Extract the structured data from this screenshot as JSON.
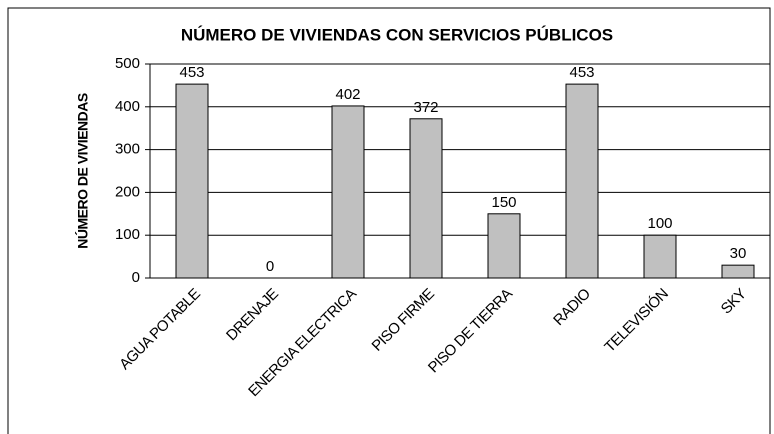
{
  "chart_data": {
    "type": "bar",
    "title": "NÚMERO DE VIVIENDAS CON SERVICIOS PÚBLICOS",
    "y_label": "NÚMERO DE VIVIENDAS",
    "categories": [
      "AGUA POTABLE",
      "DRENAJE",
      "ENERGIA ELECTRICA",
      "PISO FIRME",
      "PISO DE TIERRA",
      "RADIO",
      "TELEVISIÓN",
      "SKY"
    ],
    "values": [
      453,
      0,
      402,
      372,
      150,
      453,
      100,
      30
    ],
    "color": "#c0c0c0",
    "ylim": [
      0,
      500
    ],
    "yticks": [
      0,
      100,
      200,
      300,
      400,
      500
    ],
    "grid": true
  }
}
